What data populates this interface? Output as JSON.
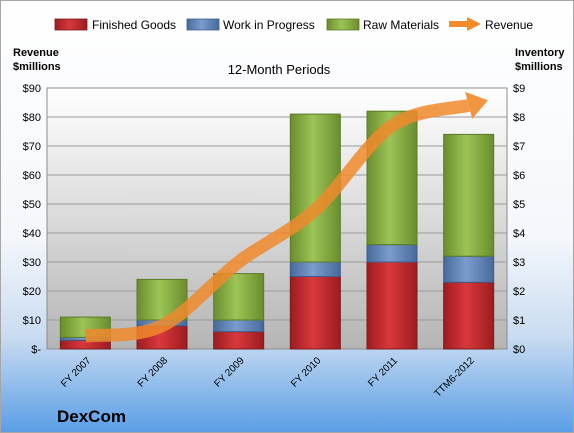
{
  "chart_data": {
    "type": "bar",
    "stacked": true,
    "subtitle": "12-Month Periods",
    "company": "DexCom",
    "left_axis_title": [
      "Revenue",
      "$millions"
    ],
    "right_axis_title": [
      "Inventory",
      "$millions"
    ],
    "categories": [
      "FY 2007",
      "FY 2008",
      "FY 2009",
      "FY 2010",
      "FY 2011",
      "TTM6-2012"
    ],
    "left_ticks": [
      "$-",
      "$10",
      "$20",
      "$30",
      "$40",
      "$50",
      "$60",
      "$70",
      "$80",
      "$90"
    ],
    "right_ticks": [
      "$0",
      "$1",
      "$2",
      "$3",
      "$4",
      "$5",
      "$6",
      "$7",
      "$8",
      "$9"
    ],
    "ylim_left": [
      0,
      90
    ],
    "ylim_right": [
      0,
      9
    ],
    "grid": true,
    "legend_position": "top",
    "series": [
      {
        "name": "Finished Goods",
        "axis": "right",
        "color": "#c0262b",
        "values": [
          0.3,
          0.8,
          0.6,
          2.5,
          3.0,
          2.3
        ]
      },
      {
        "name": "Work in Progress",
        "axis": "right",
        "color": "#5b80b8",
        "values": [
          0.1,
          0.2,
          0.4,
          0.5,
          0.6,
          0.9
        ]
      },
      {
        "name": "Raw Materials",
        "axis": "right",
        "color": "#80a83b",
        "values": [
          0.7,
          1.4,
          1.6,
          5.1,
          4.6,
          4.2
        ]
      },
      {
        "name": "Revenue",
        "axis": "left",
        "type": "arrow-line",
        "color": "#f08a2c",
        "values": [
          4.5,
          8.0,
          30.0,
          48.0,
          77.0,
          84.0
        ]
      }
    ]
  }
}
